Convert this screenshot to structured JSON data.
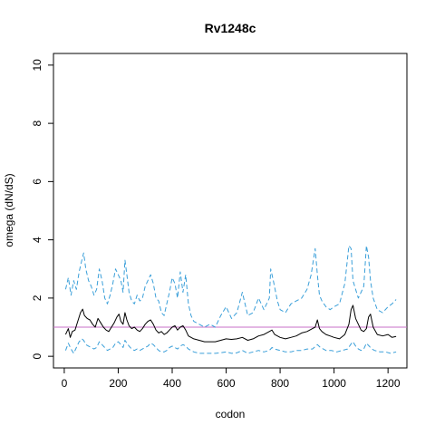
{
  "chart_data": {
    "type": "line",
    "title": "Rv1248c",
    "xlabel": "codon",
    "ylabel": "omega (dN/dS)",
    "xlim": [
      -40,
      1270
    ],
    "ylim": [
      -0.4,
      10.4
    ],
    "xticks": [
      0,
      200,
      400,
      600,
      800,
      1000,
      1200
    ],
    "yticks": [
      0,
      2,
      4,
      6,
      8,
      10
    ],
    "grid": false,
    "reference_line": {
      "y": 1,
      "color": "#c76fc7"
    },
    "colors": {
      "mean": "#000000",
      "ci": "#3a9fd9"
    },
    "series": [
      {
        "style": "solid",
        "x": [
          5,
          15,
          22,
          30,
          40,
          50,
          60,
          68,
          75,
          85,
          95,
          105,
          115,
          125,
          135,
          145,
          155,
          165,
          175,
          185,
          195,
          203,
          210,
          218,
          225,
          232,
          240,
          250,
          260,
          270,
          280,
          290,
          300,
          310,
          320,
          330,
          340,
          350,
          360,
          370,
          380,
          390,
          400,
          410,
          420,
          430,
          440,
          450,
          460,
          470,
          480,
          500,
          520,
          540,
          560,
          580,
          600,
          620,
          640,
          660,
          680,
          700,
          720,
          740,
          760,
          770,
          780,
          800,
          820,
          840,
          860,
          880,
          900,
          920,
          930,
          938,
          946,
          955,
          970,
          985,
          1000,
          1020,
          1040,
          1055,
          1063,
          1070,
          1080,
          1090,
          1100,
          1110,
          1120,
          1128,
          1135,
          1145,
          1160,
          1180,
          1200,
          1215,
          1230
        ],
        "values": [
          0.75,
          0.95,
          0.65,
          0.85,
          0.9,
          1.2,
          1.5,
          1.62,
          1.4,
          1.3,
          1.25,
          1.1,
          1.0,
          1.3,
          1.15,
          1.0,
          0.9,
          0.85,
          1.0,
          1.15,
          1.35,
          1.45,
          1.2,
          1.1,
          1.5,
          1.25,
          1.05,
          0.95,
          1.0,
          0.9,
          0.85,
          0.95,
          1.1,
          1.2,
          1.25,
          1.1,
          0.9,
          0.8,
          0.85,
          0.75,
          0.8,
          0.9,
          1.0,
          1.05,
          0.9,
          1.0,
          1.05,
          0.9,
          0.7,
          0.65,
          0.6,
          0.55,
          0.5,
          0.5,
          0.5,
          0.55,
          0.6,
          0.58,
          0.6,
          0.65,
          0.55,
          0.6,
          0.7,
          0.75,
          0.85,
          0.9,
          0.75,
          0.65,
          0.6,
          0.65,
          0.7,
          0.8,
          0.85,
          0.95,
          1.0,
          1.25,
          0.95,
          0.85,
          0.75,
          0.7,
          0.65,
          0.6,
          0.75,
          1.1,
          1.6,
          1.75,
          1.3,
          1.1,
          0.9,
          0.85,
          0.95,
          1.35,
          1.45,
          1.0,
          0.75,
          0.7,
          0.75,
          0.65,
          0.68
        ]
      },
      {
        "style": "dashed",
        "x": [
          5,
          15,
          25,
          35,
          45,
          55,
          65,
          72,
          80,
          90,
          100,
          110,
          120,
          130,
          140,
          150,
          160,
          170,
          180,
          190,
          200,
          210,
          218,
          225,
          232,
          240,
          250,
          260,
          270,
          280,
          290,
          300,
          310,
          320,
          330,
          340,
          350,
          360,
          370,
          380,
          390,
          400,
          410,
          420,
          430,
          440,
          450,
          460,
          470,
          480,
          500,
          520,
          540,
          560,
          580,
          600,
          620,
          640,
          660,
          680,
          700,
          720,
          740,
          760,
          765,
          775,
          790,
          800,
          820,
          840,
          860,
          880,
          900,
          915,
          930,
          938,
          946,
          955,
          970,
          985,
          1000,
          1020,
          1040,
          1055,
          1063,
          1070,
          1080,
          1090,
          1100,
          1110,
          1120,
          1128,
          1135,
          1145,
          1160,
          1180,
          1200,
          1215,
          1230
        ],
        "values": [
          2.3,
          2.7,
          2.1,
          2.6,
          2.3,
          2.9,
          3.3,
          3.55,
          3.0,
          2.6,
          2.4,
          2.1,
          2.3,
          3.0,
          2.6,
          2.0,
          1.8,
          2.1,
          2.5,
          3.0,
          2.8,
          2.6,
          2.2,
          3.3,
          2.8,
          2.2,
          1.9,
          1.8,
          2.1,
          1.9,
          2.0,
          2.4,
          2.6,
          2.8,
          2.5,
          2.0,
          1.9,
          1.5,
          1.4,
          1.8,
          2.2,
          2.7,
          2.5,
          2.0,
          2.9,
          2.2,
          2.8,
          1.8,
          1.4,
          1.2,
          1.1,
          1.0,
          1.1,
          1.0,
          1.4,
          1.7,
          1.3,
          1.5,
          2.2,
          1.4,
          1.5,
          2.0,
          1.6,
          2.0,
          3.0,
          2.6,
          1.9,
          1.6,
          1.5,
          1.8,
          1.9,
          2.0,
          2.3,
          2.8,
          3.7,
          2.8,
          2.1,
          1.9,
          1.7,
          1.6,
          1.7,
          1.8,
          2.5,
          3.8,
          3.7,
          2.6,
          2.3,
          2.0,
          2.2,
          2.4,
          3.8,
          3.4,
          2.6,
          2.0,
          1.6,
          1.5,
          1.7,
          1.8,
          1.95
        ]
      },
      {
        "style": "dashed",
        "x": [
          5,
          15,
          25,
          35,
          45,
          55,
          65,
          72,
          80,
          90,
          100,
          110,
          120,
          130,
          140,
          150,
          160,
          170,
          180,
          190,
          200,
          210,
          218,
          225,
          232,
          240,
          250,
          260,
          270,
          280,
          290,
          300,
          310,
          320,
          330,
          340,
          350,
          360,
          370,
          380,
          390,
          400,
          410,
          420,
          430,
          440,
          450,
          460,
          470,
          480,
          500,
          520,
          540,
          560,
          580,
          600,
          620,
          640,
          660,
          680,
          700,
          720,
          740,
          760,
          770,
          780,
          800,
          820,
          840,
          860,
          880,
          900,
          920,
          938,
          950,
          970,
          990,
          1010,
          1030,
          1050,
          1065,
          1070,
          1080,
          1090,
          1100,
          1110,
          1120,
          1130,
          1140,
          1150,
          1170,
          1190,
          1210,
          1230
        ],
        "values": [
          0.2,
          0.45,
          0.25,
          0.1,
          0.3,
          0.5,
          0.6,
          0.55,
          0.4,
          0.35,
          0.3,
          0.25,
          0.3,
          0.5,
          0.4,
          0.3,
          0.2,
          0.25,
          0.3,
          0.45,
          0.5,
          0.4,
          0.3,
          0.55,
          0.45,
          0.35,
          0.25,
          0.2,
          0.25,
          0.2,
          0.25,
          0.3,
          0.35,
          0.45,
          0.4,
          0.3,
          0.2,
          0.15,
          0.15,
          0.2,
          0.3,
          0.35,
          0.3,
          0.25,
          0.35,
          0.4,
          0.35,
          0.25,
          0.2,
          0.15,
          0.1,
          0.1,
          0.1,
          0.1,
          0.12,
          0.15,
          0.1,
          0.12,
          0.2,
          0.1,
          0.15,
          0.2,
          0.15,
          0.2,
          0.3,
          0.25,
          0.2,
          0.15,
          0.15,
          0.2,
          0.2,
          0.25,
          0.25,
          0.4,
          0.3,
          0.2,
          0.2,
          0.15,
          0.2,
          0.25,
          0.45,
          0.5,
          0.35,
          0.25,
          0.2,
          0.25,
          0.45,
          0.35,
          0.25,
          0.2,
          0.15,
          0.15,
          0.1,
          0.15
        ]
      }
    ]
  }
}
